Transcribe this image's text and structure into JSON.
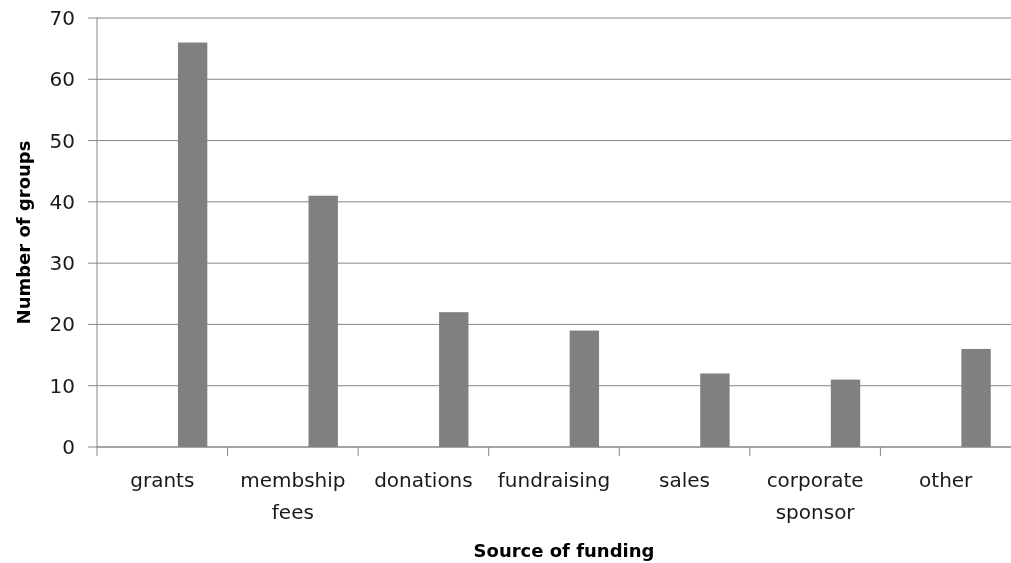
{
  "chart_data": {
    "type": "bar",
    "xlabel": "Source of funding",
    "ylabel": "Number of groups",
    "categories": [
      "grants",
      "membship fees",
      "donations",
      "fundraising",
      "sales",
      "corporate sponsor",
      "other"
    ],
    "values": [
      66,
      41,
      22,
      19,
      12,
      11,
      16
    ],
    "color": "#808080",
    "ylim": [
      0,
      70
    ],
    "yticks": [
      0,
      10,
      20,
      30,
      40,
      50,
      60,
      70
    ],
    "grid": "y"
  }
}
